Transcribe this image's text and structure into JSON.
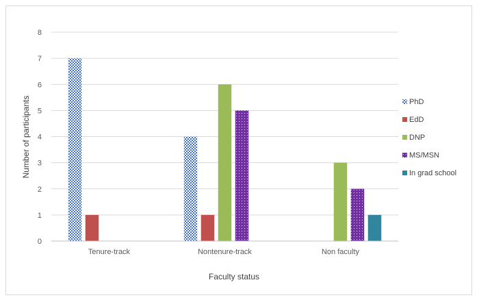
{
  "chart_data": {
    "type": "bar",
    "title": "",
    "xlabel": "Faculty status",
    "ylabel": "Number of participants",
    "categories": [
      "Tenure-track",
      "Nontenure-track",
      "Non faculty"
    ],
    "ylim": [
      0,
      8
    ],
    "yticks": [
      0,
      1,
      2,
      3,
      4,
      5,
      6,
      7,
      8
    ],
    "grid": true,
    "legend_position": "right",
    "series": [
      {
        "name": "PhD",
        "values": [
          7,
          4,
          0
        ],
        "color": "#4472c4",
        "pattern": "checker"
      },
      {
        "name": "EdD",
        "values": [
          1,
          1,
          0
        ],
        "color": "#c0504d",
        "pattern": "solid"
      },
      {
        "name": "DNP",
        "values": [
          0,
          6,
          3
        ],
        "color": "#9bbb59",
        "pattern": "solid"
      },
      {
        "name": "MS/MSN",
        "values": [
          0,
          5,
          2
        ],
        "color": "#7030a0",
        "pattern": "dots"
      },
      {
        "name": "In grad school",
        "values": [
          0,
          0,
          1
        ],
        "color": "#31859c",
        "pattern": "solid"
      }
    ]
  }
}
